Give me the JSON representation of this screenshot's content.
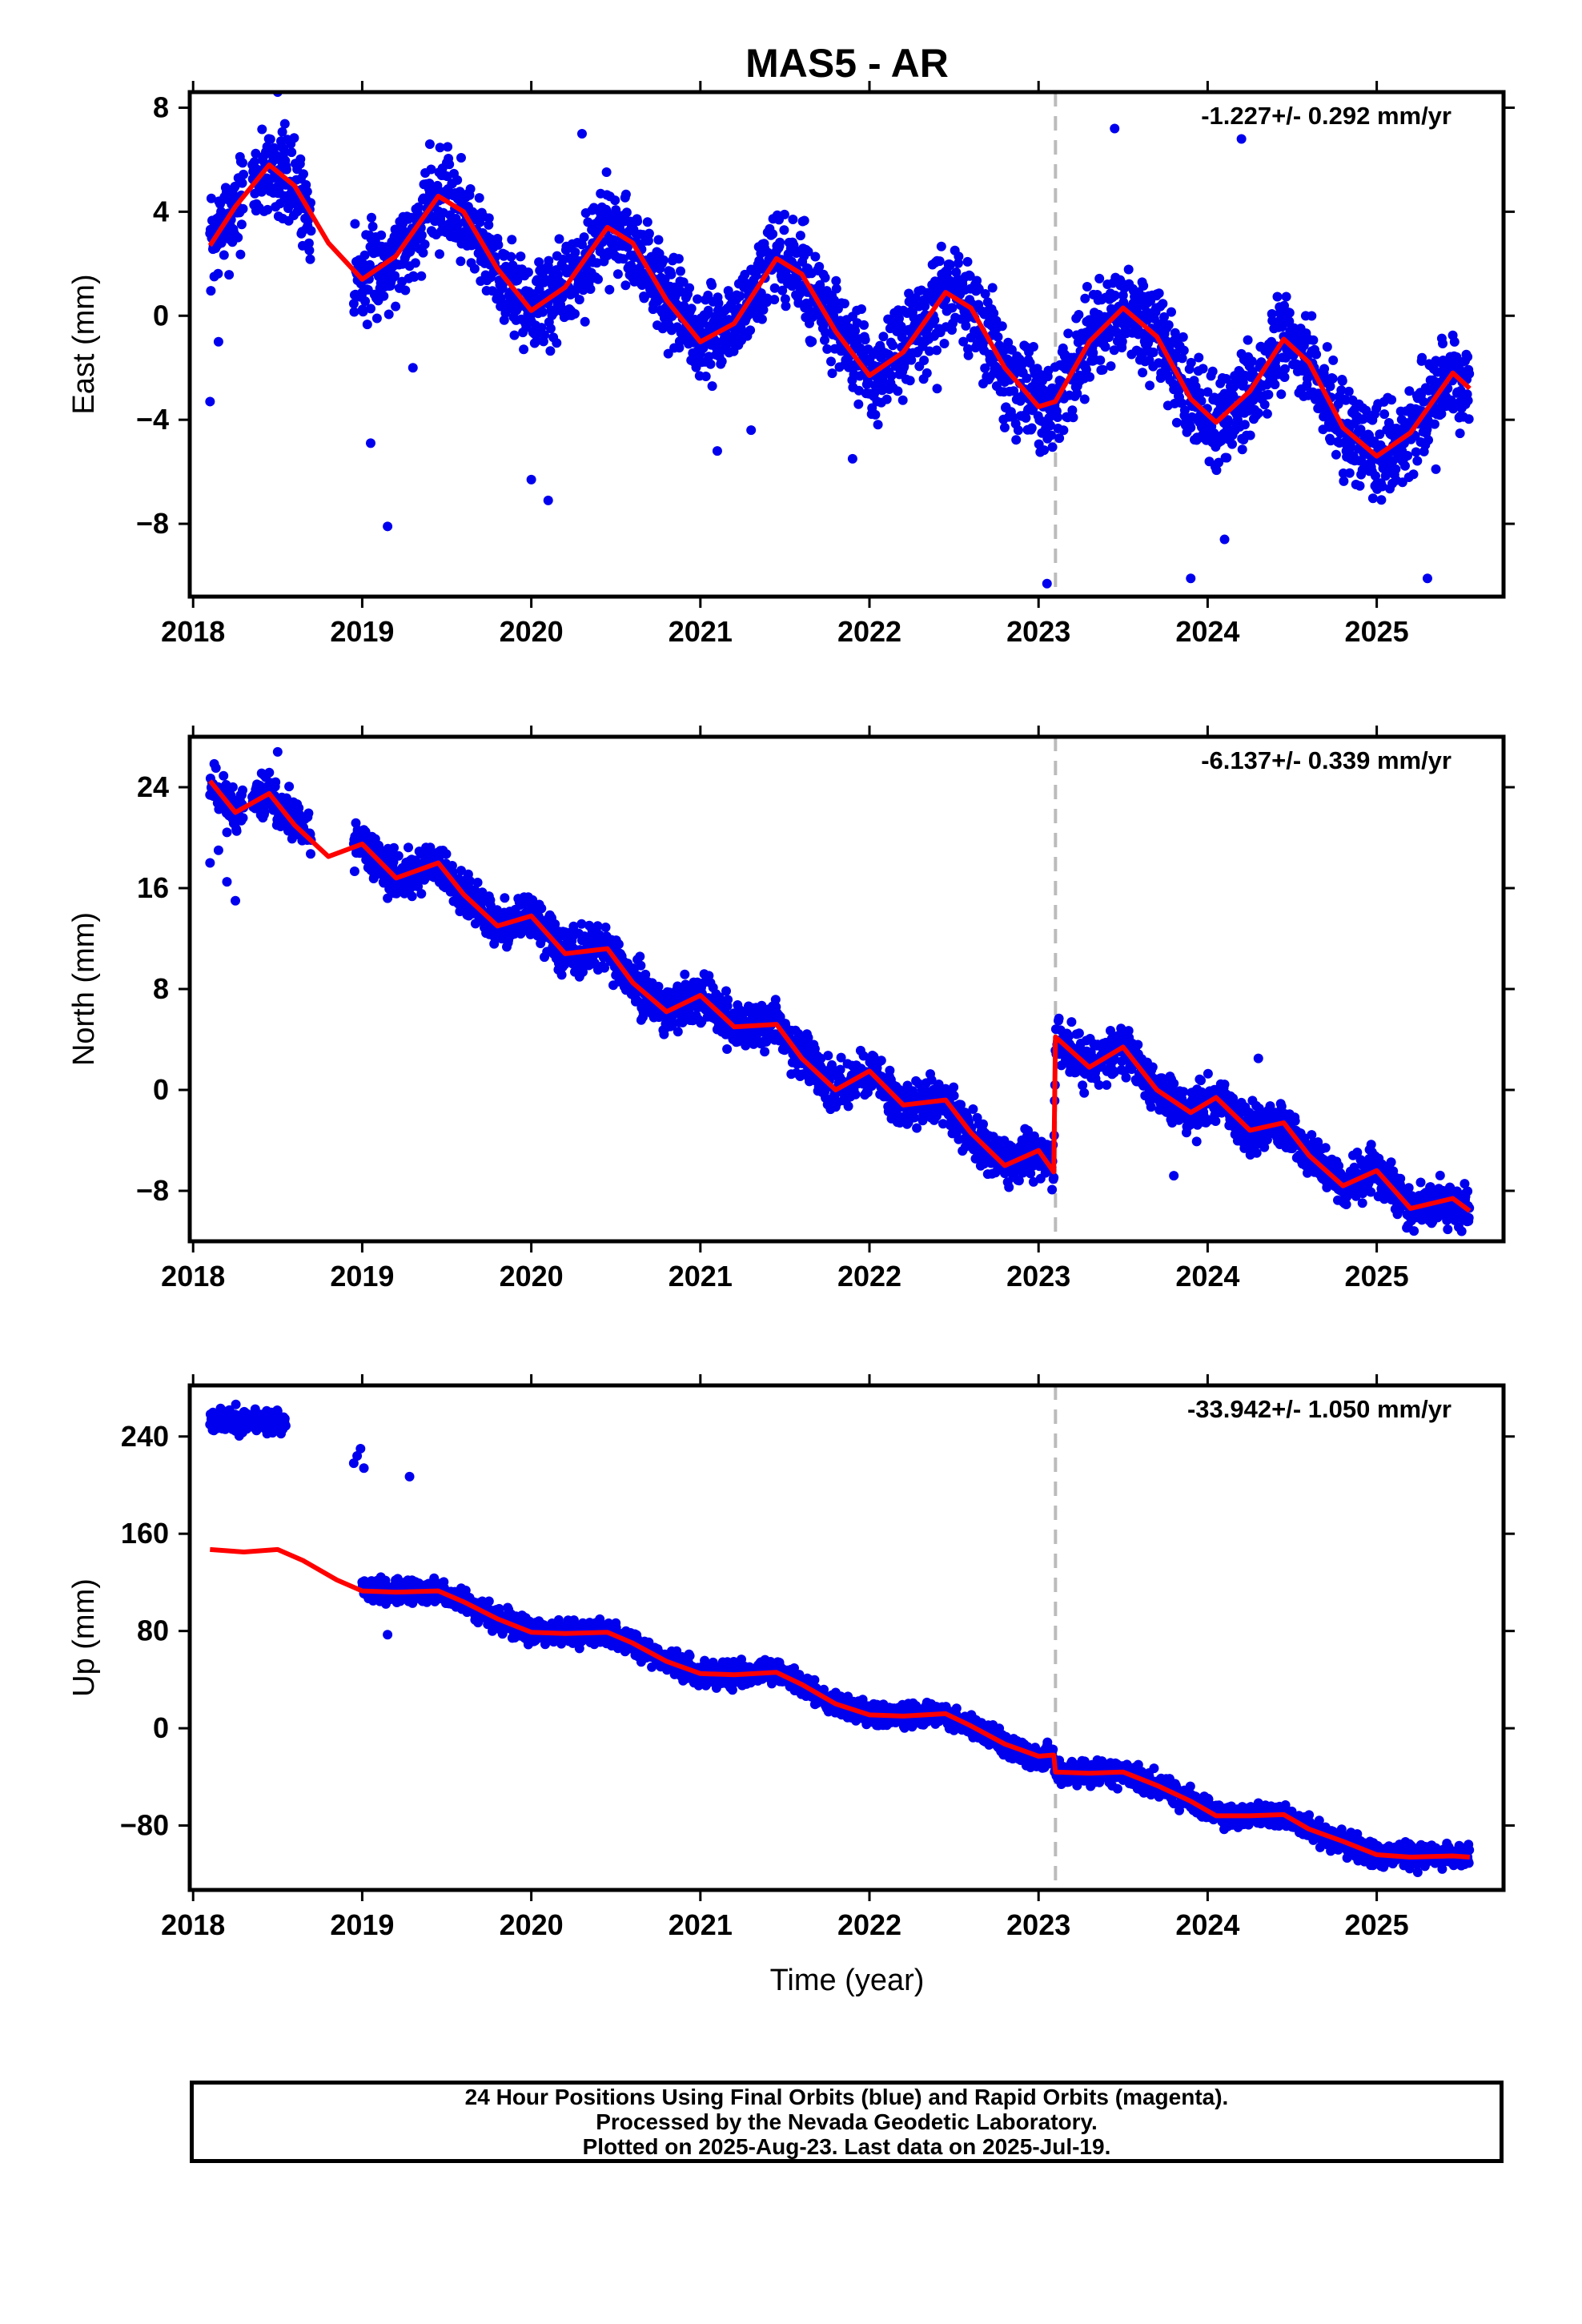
{
  "title": "MAS5 - AR",
  "colors": {
    "points": "#0000ee",
    "model": "#ff0000",
    "event_line": "#bbbbbb",
    "frame": "#000000"
  },
  "chart_data": [
    {
      "type": "scatter",
      "ylabel": "East (mm)",
      "rate_label": "-1.227+/- 0.292 mm/yr",
      "xlim": [
        2017.98,
        2025.75
      ],
      "ylim": [
        -10.8,
        8.6
      ],
      "yticks": [
        -8,
        -4,
        0,
        4,
        8
      ],
      "ytick_labels": [
        "−8",
        "−4",
        "0",
        "4",
        "8"
      ],
      "xticks": [
        2018,
        2019,
        2020,
        2021,
        2022,
        2023,
        2024,
        2025
      ],
      "xtick_labels": [
        "2018",
        "2019",
        "2020",
        "2021",
        "2022",
        "2023",
        "2024",
        "2025"
      ],
      "event_x": 2023.1,
      "model": {
        "x": [
          2018.1,
          2018.25,
          2018.45,
          2018.6,
          2018.8,
          2019.0,
          2019.2,
          2019.45,
          2019.6,
          2019.8,
          2020.0,
          2020.2,
          2020.45,
          2020.6,
          2020.8,
          2021.0,
          2021.2,
          2021.45,
          2021.6,
          2021.8,
          2022.0,
          2022.2,
          2022.45,
          2022.6,
          2022.8,
          2023.0,
          2023.1,
          2023.3,
          2023.5,
          2023.7,
          2023.9,
          2024.05,
          2024.25,
          2024.45,
          2024.6,
          2024.8,
          2025.0,
          2025.2,
          2025.45,
          2025.55
        ],
        "y": [
          2.7,
          4.2,
          5.8,
          5.0,
          2.8,
          1.4,
          2.3,
          4.6,
          4.0,
          1.8,
          0.2,
          1.1,
          3.4,
          2.8,
          0.6,
          -1.0,
          -0.3,
          2.2,
          1.6,
          -0.6,
          -2.3,
          -1.4,
          0.9,
          0.3,
          -2.0,
          -3.5,
          -3.3,
          -1.0,
          0.3,
          -0.8,
          -3.2,
          -4.1,
          -2.9,
          -0.9,
          -1.8,
          -4.3,
          -5.4,
          -4.5,
          -2.2,
          -2.8
        ]
      },
      "points_model": {
        "x_start": 2018.1,
        "x_end": 2025.55,
        "spacing": 0.0025,
        "segments": [
          [
            2018.1,
            2018.3
          ],
          [
            2018.35,
            2018.7
          ],
          [
            2018.95,
            2025.55
          ]
        ],
        "noise": 1.1,
        "seed": 7,
        "offset_before_event": 0.0
      },
      "outliers": {
        "x": [
          2018.1,
          2018.15,
          2018.5,
          2019.05,
          2019.15,
          2019.3,
          2019.4,
          2020.0,
          2020.3,
          2020.1,
          2021.1,
          2021.3,
          2021.9,
          2022.4,
          2022.8,
          2023.05,
          2023.45,
          2023.9,
          2024.1,
          2024.2,
          2025.3,
          2025.35
        ],
        "y": [
          -3.3,
          -1.0,
          8.6,
          -4.9,
          -8.1,
          -2.0,
          6.6,
          -6.3,
          7.0,
          -7.1,
          -5.2,
          -4.4,
          -5.5,
          -2.8,
          -4.3,
          -10.3,
          7.2,
          -10.1,
          -8.6,
          6.8,
          -10.1,
          -5.9
        ]
      }
    },
    {
      "type": "scatter",
      "ylabel": "North (mm)",
      "rate_label": "-6.137+/- 0.339 mm/yr",
      "xlim": [
        2017.98,
        2025.75
      ],
      "ylim": [
        -12.0,
        28.0
      ],
      "yticks": [
        -8,
        0,
        8,
        16,
        24
      ],
      "ytick_labels": [
        "−8",
        "0",
        "8",
        "16",
        "24"
      ],
      "xticks": [
        2018,
        2019,
        2020,
        2021,
        2022,
        2023,
        2024,
        2025
      ],
      "xtick_labels": [
        "2018",
        "2019",
        "2020",
        "2021",
        "2022",
        "2023",
        "2024",
        "2025"
      ],
      "event_x": 2023.1,
      "model": {
        "x": [
          2018.1,
          2018.25,
          2018.45,
          2018.6,
          2018.8,
          2019.0,
          2019.2,
          2019.45,
          2019.6,
          2019.8,
          2020.0,
          2020.2,
          2020.45,
          2020.6,
          2020.8,
          2021.0,
          2021.2,
          2021.45,
          2021.6,
          2021.8,
          2022.0,
          2022.2,
          2022.45,
          2022.6,
          2022.8,
          2023.0,
          2023.09,
          2023.1,
          2023.3,
          2023.5,
          2023.7,
          2023.9,
          2024.05,
          2024.25,
          2024.45,
          2024.6,
          2024.8,
          2025.0,
          2025.2,
          2025.45,
          2025.55
        ],
        "y": [
          24.5,
          22.0,
          23.5,
          21.0,
          18.5,
          19.5,
          16.8,
          18.0,
          15.5,
          13.0,
          13.8,
          10.8,
          11.2,
          8.5,
          6.2,
          7.5,
          5.0,
          5.2,
          2.5,
          0.0,
          1.5,
          -1.2,
          -0.8,
          -3.4,
          -6.0,
          -4.8,
          -6.5,
          4.2,
          1.8,
          3.4,
          0.0,
          -1.8,
          -0.6,
          -3.2,
          -2.6,
          -5.2,
          -7.6,
          -6.4,
          -9.4,
          -8.6,
          -9.6
        ]
      },
      "points_model": {
        "x_start": 2018.1,
        "x_end": 2025.55,
        "spacing": 0.0025,
        "segments": [
          [
            2018.1,
            2018.3
          ],
          [
            2018.35,
            2018.7
          ],
          [
            2018.95,
            2025.55
          ]
        ],
        "noise": 1.1,
        "seed": 11,
        "offset_before_event": 0.0
      },
      "outliers": {
        "x": [
          2018.1,
          2018.15,
          2018.2,
          2018.25,
          2018.5,
          2023.45,
          2023.8,
          2024.3
        ],
        "y": [
          18.0,
          19.0,
          16.5,
          15.0,
          26.8,
          4.2,
          -6.8,
          2.5
        ]
      }
    },
    {
      "type": "scatter",
      "ylabel": "Up (mm)",
      "rate_label": "-33.942+/- 1.050 mm/yr",
      "xlim": [
        2017.98,
        2025.75
      ],
      "ylim": [
        -133,
        282
      ],
      "yticks": [
        -80,
        0,
        80,
        160,
        240
      ],
      "ytick_labels": [
        "−80",
        "0",
        "80",
        "160",
        "240"
      ],
      "xticks": [
        2018,
        2019,
        2020,
        2021,
        2022,
        2023,
        2024,
        2025
      ],
      "xtick_labels": [
        "2018",
        "2019",
        "2020",
        "2021",
        "2022",
        "2023",
        "2024",
        "2025"
      ],
      "event_x": 2023.1,
      "model": {
        "x": [
          2018.1,
          2018.3,
          2018.5,
          2018.65,
          2018.85,
          2019.0,
          2019.2,
          2019.45,
          2019.6,
          2019.8,
          2020.0,
          2020.2,
          2020.45,
          2020.6,
          2020.8,
          2021.0,
          2021.2,
          2021.45,
          2021.6,
          2021.8,
          2022.0,
          2022.2,
          2022.45,
          2022.6,
          2022.8,
          2023.0,
          2023.09,
          2023.1,
          2023.3,
          2023.5,
          2023.7,
          2023.9,
          2024.05,
          2024.25,
          2024.45,
          2024.6,
          2024.8,
          2025.0,
          2025.2,
          2025.45,
          2025.55
        ],
        "y": [
          147,
          145,
          147,
          138,
          122,
          113,
          112,
          113,
          104,
          90,
          79,
          78,
          79,
          70,
          55,
          45,
          44,
          46,
          36,
          20,
          11,
          10,
          12,
          2,
          -13,
          -23,
          -22,
          -36,
          -37,
          -36,
          -47,
          -60,
          -72,
          -72,
          -71,
          -83,
          -93,
          -104,
          -106,
          -105,
          -106
        ]
      },
      "points_model": {
        "x_start": 2018.1,
        "x_end": 2025.55,
        "spacing": 0.0025,
        "segments": [
          [
            2018.1,
            2018.55
          ],
          [
            2019.0,
            2025.55
          ]
        ],
        "noise": 6.0,
        "seed": 23,
        "offset_before_event": 0.0,
        "early_level": 253,
        "early_end": 2018.55
      },
      "outliers": {
        "x": [
          2018.95,
          2018.97,
          2018.99,
          2019.01,
          2019.28,
          2019.15
        ],
        "y": [
          218,
          224,
          230,
          214,
          207,
          77
        ]
      }
    }
  ],
  "xaxis_title": "Time (year)",
  "caption": {
    "line1": "24 Hour Positions Using Final Orbits (blue) and Rapid Orbits (magenta).",
    "line2": "Processed by the Nevada Geodetic Laboratory.",
    "line3": "Plotted on 2025-Aug-23. Last data on 2025-Jul-19."
  }
}
